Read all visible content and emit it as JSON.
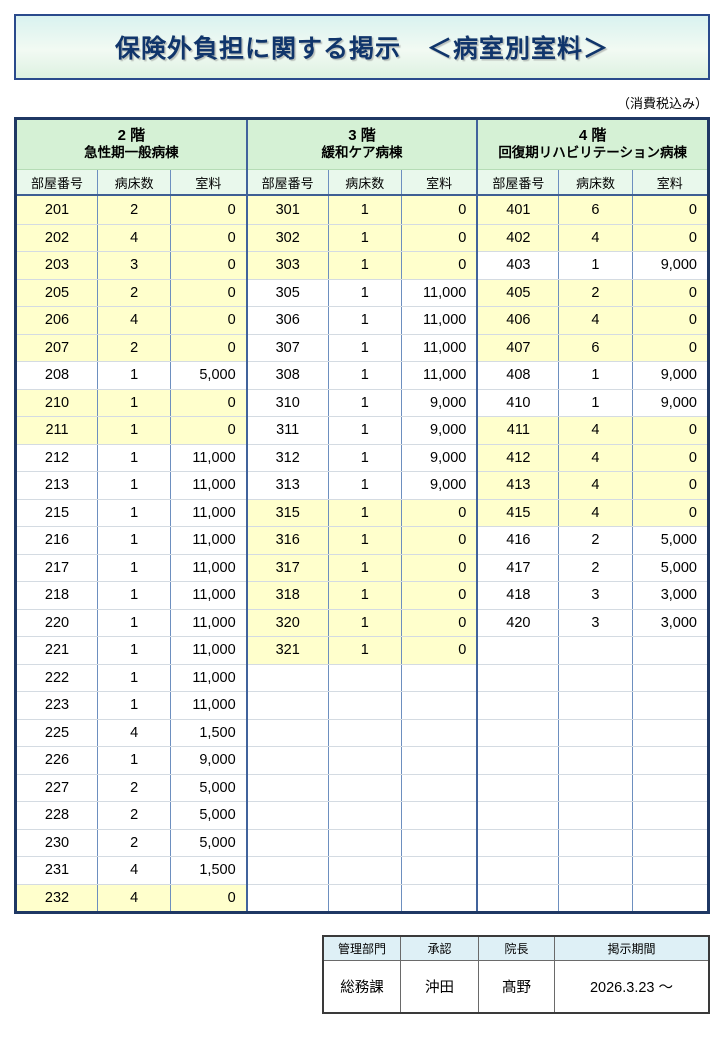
{
  "page": {
    "title": "保険外負担に関する掲示　＜病室別室料＞",
    "tax_note": "（消費税込み）"
  },
  "table": {
    "column_headers": [
      "部屋番号",
      "病床数",
      "室料"
    ],
    "total_rows": 26,
    "sections": [
      {
        "floor": "2 階",
        "ward": "急性期一般病棟",
        "rows": [
          [
            "201",
            "2",
            "0"
          ],
          [
            "202",
            "4",
            "0"
          ],
          [
            "203",
            "3",
            "0"
          ],
          [
            "205",
            "2",
            "0"
          ],
          [
            "206",
            "4",
            "0"
          ],
          [
            "207",
            "2",
            "0"
          ],
          [
            "208",
            "1",
            "5,000"
          ],
          [
            "210",
            "1",
            "0"
          ],
          [
            "211",
            "1",
            "0"
          ],
          [
            "212",
            "1",
            "11,000"
          ],
          [
            "213",
            "1",
            "11,000"
          ],
          [
            "215",
            "1",
            "11,000"
          ],
          [
            "216",
            "1",
            "11,000"
          ],
          [
            "217",
            "1",
            "11,000"
          ],
          [
            "218",
            "1",
            "11,000"
          ],
          [
            "220",
            "1",
            "11,000"
          ],
          [
            "221",
            "1",
            "11,000"
          ],
          [
            "222",
            "1",
            "11,000"
          ],
          [
            "223",
            "1",
            "11,000"
          ],
          [
            "225",
            "4",
            "1,500"
          ],
          [
            "226",
            "1",
            "9,000"
          ],
          [
            "227",
            "2",
            "5,000"
          ],
          [
            "228",
            "2",
            "5,000"
          ],
          [
            "230",
            "2",
            "5,000"
          ],
          [
            "231",
            "4",
            "1,500"
          ],
          [
            "232",
            "4",
            "0"
          ]
        ]
      },
      {
        "floor": "3 階",
        "ward": "緩和ケア病棟",
        "rows": [
          [
            "301",
            "1",
            "0"
          ],
          [
            "302",
            "1",
            "0"
          ],
          [
            "303",
            "1",
            "0"
          ],
          [
            "305",
            "1",
            "11,000"
          ],
          [
            "306",
            "1",
            "11,000"
          ],
          [
            "307",
            "1",
            "11,000"
          ],
          [
            "308",
            "1",
            "11,000"
          ],
          [
            "310",
            "1",
            "9,000"
          ],
          [
            "311",
            "1",
            "9,000"
          ],
          [
            "312",
            "1",
            "9,000"
          ],
          [
            "313",
            "1",
            "9,000"
          ],
          [
            "315",
            "1",
            "0"
          ],
          [
            "316",
            "1",
            "0"
          ],
          [
            "317",
            "1",
            "0"
          ],
          [
            "318",
            "1",
            "0"
          ],
          [
            "320",
            "1",
            "0"
          ],
          [
            "321",
            "1",
            "0"
          ]
        ]
      },
      {
        "floor": "4 階",
        "ward": "回復期リハビリテーション病棟",
        "rows": [
          [
            "401",
            "6",
            "0"
          ],
          [
            "402",
            "4",
            "0"
          ],
          [
            "403",
            "1",
            "9,000"
          ],
          [
            "405",
            "2",
            "0"
          ],
          [
            "406",
            "4",
            "0"
          ],
          [
            "407",
            "6",
            "0"
          ],
          [
            "408",
            "1",
            "9,000"
          ],
          [
            "410",
            "1",
            "9,000"
          ],
          [
            "411",
            "4",
            "0"
          ],
          [
            "412",
            "4",
            "0"
          ],
          [
            "413",
            "4",
            "0"
          ],
          [
            "415",
            "4",
            "0"
          ],
          [
            "416",
            "2",
            "5,000"
          ],
          [
            "417",
            "2",
            "5,000"
          ],
          [
            "418",
            "3",
            "3,000"
          ],
          [
            "420",
            "3",
            "3,000"
          ]
        ]
      }
    ]
  },
  "approval": {
    "headers": [
      "管理部門",
      "承認",
      "院長",
      "掲示期間"
    ],
    "values": [
      "総務課",
      "沖田",
      "髙野",
      "2026.3.23 ～"
    ]
  },
  "colors": {
    "title_navy": "#10356b",
    "outer_border_navy": "#1f3864",
    "section_header_green": "#d5f1d5",
    "column_header_green": "#e9f8ec",
    "row_highlight_yellow": "#ffffcc",
    "approval_header_blue": "#def0f6"
  }
}
